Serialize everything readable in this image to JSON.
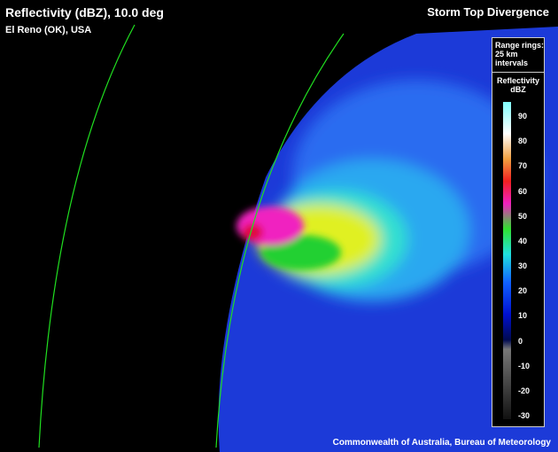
{
  "header": {
    "title": "Reflectivity (dBZ), 10.0 deg",
    "location": "El Reno (OK), USA",
    "product": "Storm Top Divergence"
  },
  "legend": {
    "range_note": [
      "Range rings:",
      "25 km",
      "intervals"
    ],
    "colorbar_title": [
      "Reflectivity",
      "dBZ"
    ],
    "ticks": [
      90,
      80,
      70,
      60,
      50,
      40,
      30,
      20,
      10,
      0,
      -10,
      -20,
      -30
    ]
  },
  "credit": "Commonwealth of Australia, Bureau of Meteorology"
}
